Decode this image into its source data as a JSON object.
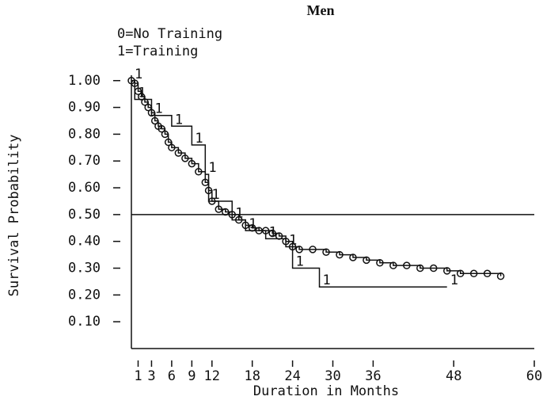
{
  "chart_data": {
    "type": "step",
    "title": "Men",
    "x_label": "Duration in Months",
    "y_label": "Survival Probability",
    "xlim": [
      0,
      60
    ],
    "ylim": [
      0,
      1.02
    ],
    "xticks": [
      1,
      3,
      6,
      9,
      12,
      18,
      24,
      30,
      36,
      48,
      60
    ],
    "yticks": [
      {
        "value": 1,
        "label": "1.00"
      },
      {
        "value": 0.9,
        "label": "0.90"
      },
      {
        "value": 0.8,
        "label": "0.80"
      },
      {
        "value": 0.7,
        "label": "0.70"
      },
      {
        "value": 0.6,
        "label": "0.60"
      },
      {
        "value": 0.5,
        "label": "0.50"
      },
      {
        "value": 0.4,
        "label": "0.40"
      },
      {
        "value": 0.3,
        "label": "0.30"
      },
      {
        "value": 0.2,
        "label": "0.20"
      },
      {
        "value": 0.1,
        "label": "0.10"
      }
    ],
    "grid": false,
    "reference_line": 0.5,
    "series": [
      {
        "name": "0=No Training",
        "marker": "circle",
        "color": "#111",
        "x": [
          0,
          0.5,
          1,
          1.5,
          2,
          2.5,
          3,
          3.5,
          4,
          4.5,
          5,
          5.5,
          6,
          7,
          8,
          9,
          10,
          11,
          11.5,
          12,
          13,
          14,
          15,
          16,
          17,
          18,
          19,
          20,
          21,
          22,
          23,
          24,
          25,
          27,
          29,
          31,
          33,
          35,
          37,
          39,
          41,
          43,
          45,
          47,
          49,
          51,
          53,
          55
        ],
        "values": [
          1.0,
          0.99,
          0.96,
          0.94,
          0.92,
          0.9,
          0.88,
          0.85,
          0.83,
          0.82,
          0.8,
          0.77,
          0.75,
          0.73,
          0.71,
          0.69,
          0.66,
          0.62,
          0.59,
          0.55,
          0.52,
          0.51,
          0.5,
          0.48,
          0.46,
          0.45,
          0.44,
          0.44,
          0.43,
          0.42,
          0.4,
          0.38,
          0.37,
          0.37,
          0.36,
          0.35,
          0.34,
          0.33,
          0.32,
          0.31,
          0.31,
          0.3,
          0.3,
          0.29,
          0.28,
          0.28,
          0.28,
          0.27
        ]
      },
      {
        "name": "1=Training",
        "marker": "1",
        "color": "#111",
        "x": [
          0,
          0.5,
          3,
          6,
          9,
          11,
          11.5,
          15,
          17,
          20,
          23,
          24,
          28,
          47
        ],
        "values": [
          1.0,
          0.93,
          0.87,
          0.83,
          0.76,
          0.65,
          0.55,
          0.48,
          0.44,
          0.41,
          0.38,
          0.3,
          0.23,
          0.23
        ]
      }
    ]
  }
}
